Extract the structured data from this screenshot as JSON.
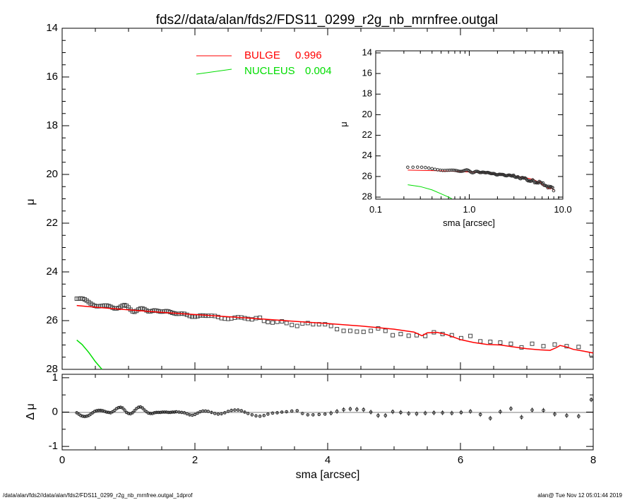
{
  "title": "fds2//data/alan/fds2/FDS11_0299_r2g_nb_mrnfree.outgal",
  "footer_left": "/data/alan/fds2//data/alan/fds2/FDS11_0299_r2g_nb_mrnfree.outgal_1dprof",
  "footer_right": "alan@  Tue Nov 12 05:01:44 2019",
  "chart_data": [
    {
      "type": "scatter",
      "panel": "main",
      "xlabel": "sma [arcsec]",
      "ylabel": "μ",
      "xlim": [
        0,
        8
      ],
      "ylim": [
        28,
        14
      ],
      "yticks": [
        "14",
        "16",
        "18",
        "20",
        "22",
        "24",
        "26",
        "28"
      ],
      "legend": [
        {
          "name": "BULGE",
          "value": "0.996",
          "color": "#ff0000"
        },
        {
          "name": "NUCLEUS",
          "value": "0.004",
          "color": "#00dd00"
        }
      ],
      "data_x": [
        0.22,
        0.25,
        0.28,
        0.31,
        0.34,
        0.37,
        0.4,
        0.43,
        0.46,
        0.49,
        0.52,
        0.55,
        0.58,
        0.61,
        0.64,
        0.67,
        0.7,
        0.73,
        0.76,
        0.79,
        0.82,
        0.85,
        0.88,
        0.91,
        0.94,
        0.97,
        1.0,
        1.03,
        1.06,
        1.09,
        1.12,
        1.15,
        1.18,
        1.21,
        1.24,
        1.27,
        1.3,
        1.33,
        1.36,
        1.39,
        1.42,
        1.45,
        1.48,
        1.51,
        1.54,
        1.57,
        1.6,
        1.63,
        1.66,
        1.69,
        1.72,
        1.76,
        1.8,
        1.84,
        1.88,
        1.92,
        1.96,
        2.0,
        2.04,
        2.08,
        2.12,
        2.16,
        2.2,
        2.25,
        2.3,
        2.35,
        2.4,
        2.45,
        2.5,
        2.55,
        2.6,
        2.65,
        2.7,
        2.75,
        2.8,
        2.86,
        2.92,
        2.98,
        3.04,
        3.1,
        3.17,
        3.24,
        3.31,
        3.38,
        3.46,
        3.54,
        3.62,
        3.7,
        3.78,
        3.87,
        3.96,
        4.05,
        4.14,
        4.24,
        4.34,
        4.44,
        4.54,
        4.65,
        4.76,
        4.87,
        4.98,
        5.1,
        5.22,
        5.34,
        5.47,
        5.6,
        5.73,
        5.87,
        6.01,
        6.15,
        6.3,
        6.45,
        6.6,
        6.76,
        6.92,
        7.08,
        7.25,
        7.42,
        7.6,
        7.78,
        7.97
      ],
      "data_y": [
        25.1,
        25.1,
        25.09,
        25.1,
        25.13,
        25.18,
        25.24,
        25.3,
        25.35,
        25.39,
        25.41,
        25.41,
        25.4,
        25.39,
        25.38,
        25.38,
        25.4,
        25.43,
        25.47,
        25.5,
        25.5,
        25.48,
        25.43,
        25.38,
        25.36,
        25.39,
        25.46,
        25.55,
        25.62,
        25.64,
        25.6,
        25.54,
        25.5,
        25.5,
        25.53,
        25.58,
        25.62,
        25.62,
        25.6,
        25.58,
        25.59,
        25.61,
        25.63,
        25.63,
        25.62,
        25.61,
        25.62,
        25.65,
        25.68,
        25.7,
        25.72,
        25.72,
        25.71,
        25.72,
        25.76,
        25.81,
        25.84,
        25.84,
        25.82,
        25.79,
        25.79,
        25.8,
        25.8,
        25.8,
        25.81,
        25.85,
        25.9,
        25.92,
        25.93,
        25.91,
        25.88,
        25.86,
        25.87,
        25.9,
        25.93,
        25.95,
        25.9,
        25.88,
        26.01,
        26.06,
        26.08,
        26.05,
        26.03,
        26.1,
        26.18,
        26.22,
        26.12,
        26.1,
        26.15,
        26.15,
        26.15,
        26.22,
        26.35,
        26.42,
        26.42,
        26.45,
        26.46,
        26.42,
        26.32,
        26.42,
        26.6,
        26.55,
        26.62,
        26.6,
        26.63,
        26.48,
        26.55,
        26.6,
        26.72,
        26.63,
        26.85,
        26.87,
        26.9,
        26.95,
        27.1,
        26.95,
        27.05,
        26.98,
        27.05,
        27.08,
        27.38
      ],
      "bulge_x": [
        0.22,
        0.5,
        1.0,
        1.5,
        2.0,
        2.5,
        3.0,
        3.5,
        4.0,
        4.5,
        5.0,
        5.3,
        5.35,
        5.42,
        5.5,
        5.65,
        5.8,
        6.0,
        6.2,
        6.4,
        6.6,
        6.8,
        7.0,
        7.2,
        7.35,
        7.45,
        7.5,
        7.6,
        7.7,
        7.85,
        8.0
      ],
      "bulge_y": [
        25.38,
        25.45,
        25.56,
        25.66,
        25.75,
        25.84,
        25.93,
        26.03,
        26.12,
        26.22,
        26.35,
        26.47,
        26.53,
        26.62,
        26.5,
        26.48,
        26.58,
        26.78,
        26.9,
        26.98,
        27.0,
        27.08,
        27.15,
        27.2,
        27.22,
        27.1,
        27.02,
        27.08,
        27.18,
        27.25,
        27.33
      ],
      "nucleus_x": [
        0.22,
        0.3,
        0.4,
        0.5,
        0.6,
        0.65
      ],
      "nucleus_y": [
        26.8,
        26.98,
        27.3,
        27.68,
        28.0,
        28.15
      ],
      "resid_x": [
        0.22,
        0.25,
        0.28,
        0.31,
        0.34,
        0.37,
        0.4,
        0.43,
        0.46,
        0.49,
        0.52,
        0.55,
        0.58,
        0.61,
        0.64,
        0.67,
        0.7,
        0.73,
        0.76,
        0.79,
        0.82,
        0.85,
        0.88,
        0.91,
        0.94,
        0.97,
        1.0,
        1.03,
        1.06,
        1.09,
        1.12,
        1.15,
        1.18,
        1.21,
        1.24,
        1.27,
        1.3,
        1.33,
        1.36,
        1.39,
        1.42,
        1.45,
        1.48,
        1.51,
        1.54,
        1.57,
        1.6,
        1.63,
        1.66,
        1.69,
        1.72,
        1.76,
        1.8,
        1.84,
        1.88,
        1.92,
        1.96,
        2.0,
        2.04,
        2.08,
        2.12,
        2.16,
        2.2,
        2.25,
        2.3,
        2.35,
        2.4,
        2.45,
        2.5,
        2.55,
        2.6,
        2.65,
        2.7,
        2.75,
        2.8,
        2.86,
        2.92,
        2.98,
        3.04,
        3.1,
        3.17,
        3.24,
        3.31,
        3.38,
        3.46,
        3.54,
        3.62,
        3.7,
        3.78,
        3.87,
        3.96,
        4.05,
        4.14,
        4.24,
        4.34,
        4.44,
        4.54,
        4.65,
        4.76,
        4.87,
        4.98,
        5.1,
        5.22,
        5.34,
        5.47,
        5.6,
        5.73,
        5.87,
        6.01,
        6.15,
        6.3,
        6.45,
        6.6,
        6.76,
        6.92,
        7.08,
        7.25,
        7.42,
        7.6,
        7.78,
        7.97
      ],
      "resid_y": [
        -0.02,
        -0.06,
        -0.1,
        -0.12,
        -0.13,
        -0.12,
        -0.1,
        -0.06,
        -0.02,
        0.02,
        0.04,
        0.05,
        0.05,
        0.04,
        0.02,
        0.0,
        -0.01,
        -0.02,
        0.01,
        0.05,
        0.1,
        0.13,
        0.14,
        0.12,
        0.06,
        -0.01,
        -0.04,
        -0.05,
        -0.02,
        0.04,
        0.1,
        0.14,
        0.15,
        0.12,
        0.06,
        0.01,
        -0.03,
        -0.04,
        -0.04,
        -0.02,
        -0.01,
        -0.01,
        -0.01,
        0.0,
        0.0,
        0.0,
        -0.01,
        -0.01,
        0.0,
        0.0,
        0.01,
        0.0,
        -0.01,
        -0.02,
        -0.05,
        -0.08,
        -0.09,
        -0.07,
        -0.03,
        0.01,
        0.03,
        0.03,
        0.02,
        -0.01,
        -0.04,
        -0.06,
        -0.05,
        -0.02,
        0.02,
        0.05,
        0.06,
        0.06,
        0.04,
        0.0,
        -0.04,
        -0.08,
        -0.11,
        -0.12,
        -0.1,
        -0.06,
        -0.03,
        -0.02,
        0.0,
        0.01,
        0.03,
        0.04,
        -0.04,
        -0.08,
        -0.08,
        -0.07,
        -0.06,
        -0.03,
        0.02,
        0.07,
        0.09,
        0.08,
        0.07,
        0.0,
        -0.1,
        -0.1,
        0.01,
        -0.01,
        -0.04,
        -0.05,
        -0.03,
        -0.02,
        -0.02,
        -0.03,
        -0.01,
        0.02,
        -0.07,
        -0.18,
        0.01,
        0.1,
        -0.15,
        0.06,
        0.05,
        -0.06,
        -0.1,
        -0.12,
        0.36,
        0.1,
        0.13,
        -0.04
      ],
      "resid_ylabel": "Δ μ",
      "resid_ylim": [
        -1.1,
        1.1
      ],
      "resid_yticks": [
        "1",
        "0",
        "-1"
      ],
      "xticks": [
        "0",
        "2",
        "4",
        "6",
        "8"
      ]
    },
    {
      "type": "scatter",
      "panel": "inset",
      "xlabel": "sma [arcsec]",
      "ylabel": "μ",
      "xscale": "log",
      "xlim": [
        0.1,
        10.0
      ],
      "xticks": [
        "0.1",
        "1.0",
        "10.0"
      ],
      "ylim": [
        28.2,
        13.8
      ],
      "yticks": [
        "14",
        "16",
        "18",
        "20",
        "22",
        "24",
        "26",
        "28"
      ]
    }
  ]
}
